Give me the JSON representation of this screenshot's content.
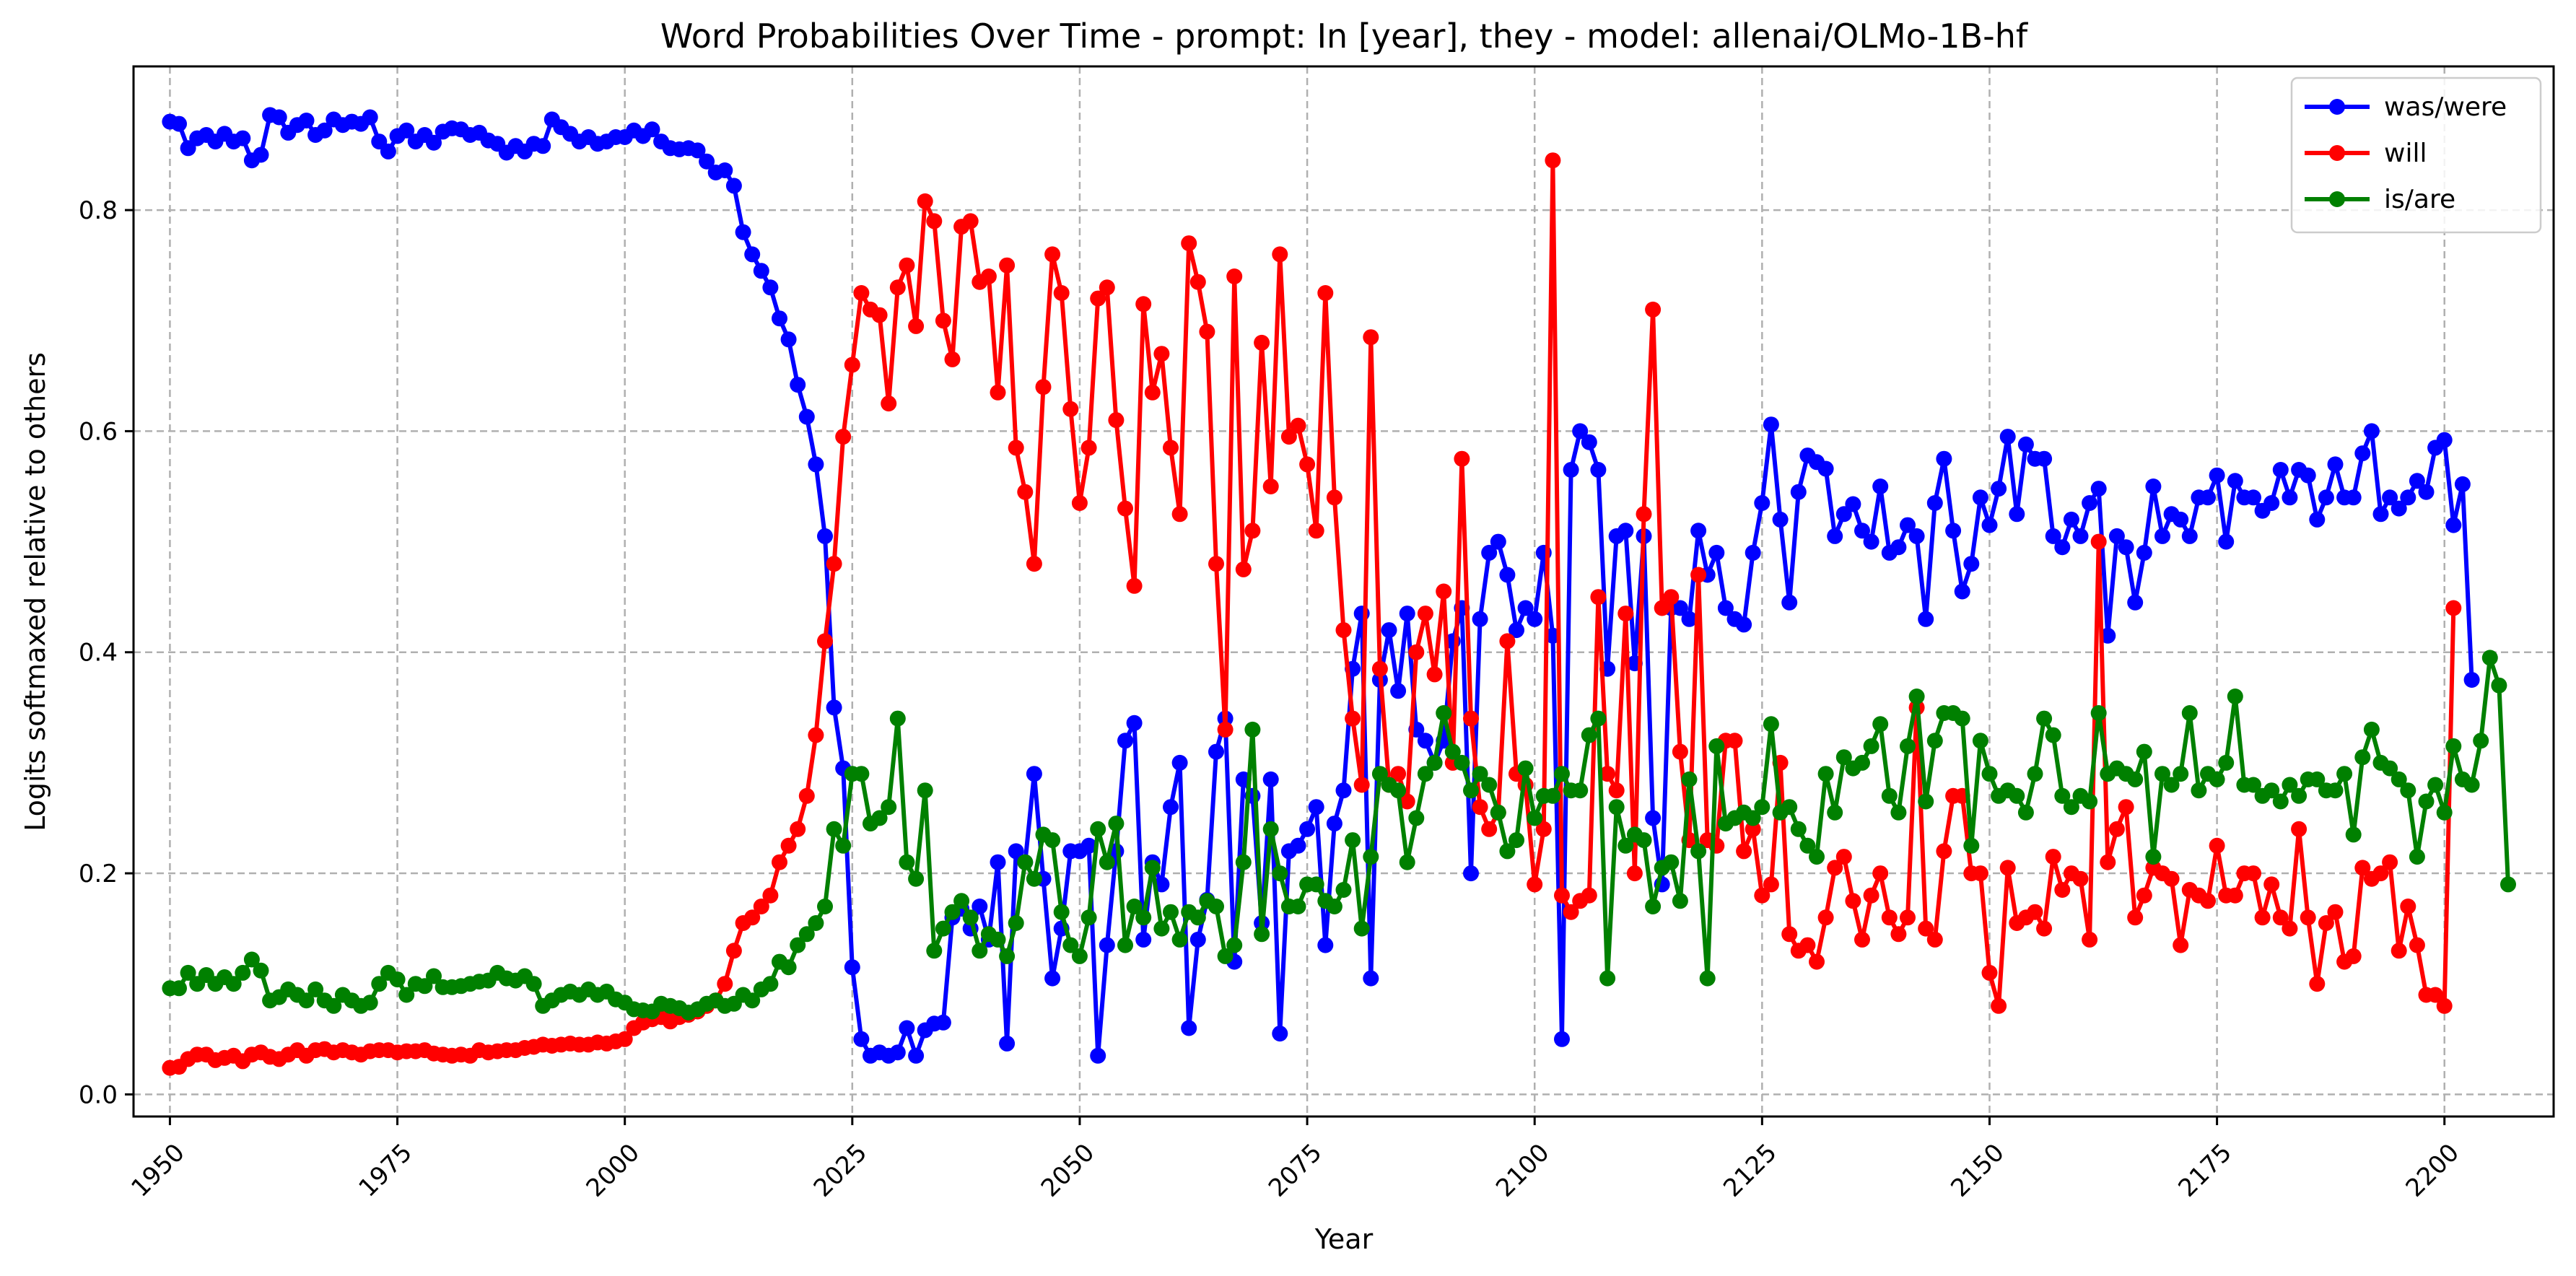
{
  "chart_data": {
    "type": "line",
    "title": "Word Probabilities Over Time - prompt: In [year], they - model: allenai/OLMo-1B-hf",
    "xlabel": "Year",
    "ylabel": "Logits softmaxed relative to others",
    "xlim": [
      1946,
      2212
    ],
    "ylim": [
      -0.02,
      0.93
    ],
    "xticks": [
      "1950",
      "1975",
      "2000",
      "2025",
      "2050",
      "2075",
      "2100",
      "2125",
      "2150",
      "2175",
      "2200"
    ],
    "yticks": [
      "0.0",
      "0.2",
      "0.4",
      "0.6",
      "0.8"
    ],
    "grid": true,
    "legend_position": "top-right",
    "x_start": 1950,
    "series": [
      {
        "name": "was/were",
        "color": "#0000ff",
        "values": [
          0.88,
          0.878,
          0.856,
          0.865,
          0.868,
          0.862,
          0.869,
          0.862,
          0.865,
          0.845,
          0.85,
          0.886,
          0.884,
          0.87,
          0.877,
          0.881,
          0.868,
          0.872,
          0.882,
          0.877,
          0.88,
          0.878,
          0.884,
          0.862,
          0.853,
          0.867,
          0.872,
          0.862,
          0.868,
          0.861,
          0.871,
          0.874,
          0.873,
          0.868,
          0.87,
          0.863,
          0.86,
          0.852,
          0.858,
          0.853,
          0.86,
          0.858,
          0.882,
          0.875,
          0.869,
          0.862,
          0.866,
          0.86,
          0.862,
          0.866,
          0.866,
          0.872,
          0.867,
          0.873,
          0.862,
          0.856,
          0.855,
          0.856,
          0.854,
          0.844,
          0.834,
          0.836,
          0.822,
          0.78,
          0.76,
          0.745,
          0.73,
          0.702,
          0.683,
          0.642,
          0.613,
          0.57,
          0.505,
          0.35,
          0.295,
          0.115,
          0.05,
          0.035,
          0.038,
          0.035,
          0.038,
          0.06,
          0.035,
          0.058,
          0.064,
          0.065,
          0.16,
          0.168,
          0.15,
          0.17,
          0.14,
          0.21,
          0.046,
          0.22,
          0.21,
          0.29,
          0.195,
          0.105,
          0.15,
          0.22,
          0.22,
          0.225,
          0.035,
          0.135,
          0.22,
          0.32,
          0.336,
          0.14,
          0.21,
          0.19,
          0.26,
          0.3,
          0.06,
          0.14,
          0.176,
          0.31,
          0.34,
          0.12,
          0.285,
          0.27,
          0.155,
          0.285,
          0.055,
          0.22,
          0.225,
          0.24,
          0.26,
          0.135,
          0.245,
          0.275,
          0.385,
          0.435,
          0.105,
          0.375,
          0.42,
          0.365,
          0.435,
          0.33,
          0.32,
          0.3,
          0.32,
          0.41,
          0.44,
          0.2,
          0.43,
          0.49,
          0.5,
          0.47,
          0.42,
          0.44,
          0.43,
          0.49,
          0.415,
          0.05,
          0.565,
          0.6,
          0.59,
          0.565,
          0.385,
          0.505,
          0.51,
          0.39,
          0.505,
          0.25,
          0.19,
          0.44,
          0.44,
          0.43,
          0.51,
          0.47,
          0.49,
          0.44,
          0.43,
          0.425,
          0.49,
          0.535,
          0.606,
          0.52,
          0.445,
          0.545,
          0.578,
          0.572,
          0.566,
          0.505,
          0.525,
          0.534,
          0.51,
          0.5,
          0.55,
          0.49,
          0.495,
          0.515,
          0.505,
          0.43,
          0.535,
          0.575,
          0.51,
          0.455,
          0.48,
          0.54,
          0.515,
          0.548,
          0.595,
          0.525,
          0.588,
          0.575,
          0.575,
          0.505,
          0.495,
          0.52,
          0.505,
          0.535,
          0.548,
          0.415,
          0.505,
          0.495,
          0.445,
          0.49,
          0.55,
          0.505,
          0.525,
          0.52,
          0.505,
          0.54,
          0.54,
          0.56,
          0.5,
          0.555,
          0.54,
          0.54,
          0.528,
          0.535,
          0.565,
          0.54,
          0.565,
          0.56,
          0.52,
          0.54,
          0.57,
          0.54,
          0.54,
          0.58,
          0.6,
          0.525,
          0.54,
          0.53,
          0.54,
          0.555,
          0.545,
          0.585,
          0.592,
          0.515,
          0.552,
          0.375
        ]
      },
      {
        "name": "will",
        "color": "#ff0000",
        "values": [
          0.024,
          0.025,
          0.032,
          0.036,
          0.036,
          0.031,
          0.033,
          0.035,
          0.03,
          0.036,
          0.038,
          0.034,
          0.032,
          0.036,
          0.04,
          0.035,
          0.04,
          0.041,
          0.038,
          0.04,
          0.038,
          0.036,
          0.039,
          0.04,
          0.04,
          0.038,
          0.039,
          0.039,
          0.04,
          0.037,
          0.036,
          0.035,
          0.036,
          0.035,
          0.04,
          0.038,
          0.039,
          0.04,
          0.04,
          0.042,
          0.043,
          0.045,
          0.044,
          0.045,
          0.046,
          0.045,
          0.045,
          0.047,
          0.046,
          0.048,
          0.05,
          0.06,
          0.065,
          0.068,
          0.07,
          0.066,
          0.07,
          0.072,
          0.075,
          0.08,
          0.085,
          0.1,
          0.13,
          0.155,
          0.16,
          0.17,
          0.18,
          0.21,
          0.225,
          0.24,
          0.27,
          0.325,
          0.41,
          0.48,
          0.595,
          0.66,
          0.725,
          0.71,
          0.705,
          0.625,
          0.73,
          0.75,
          0.695,
          0.808,
          0.79,
          0.7,
          0.665,
          0.785,
          0.79,
          0.735,
          0.74,
          0.635,
          0.75,
          0.585,
          0.545,
          0.48,
          0.64,
          0.76,
          0.725,
          0.62,
          0.535,
          0.585,
          0.72,
          0.73,
          0.61,
          0.53,
          0.46,
          0.715,
          0.635,
          0.67,
          0.585,
          0.525,
          0.77,
          0.735,
          0.69,
          0.48,
          0.33,
          0.74,
          0.475,
          0.51,
          0.68,
          0.55,
          0.76,
          0.595,
          0.605,
          0.57,
          0.51,
          0.725,
          0.54,
          0.42,
          0.34,
          0.28,
          0.685,
          0.385,
          0.28,
          0.29,
          0.265,
          0.4,
          0.435,
          0.38,
          0.455,
          0.3,
          0.575,
          0.34,
          0.26,
          0.24,
          0.255,
          0.41,
          0.29,
          0.28,
          0.19,
          0.24,
          0.845,
          0.18,
          0.165,
          0.175,
          0.18,
          0.45,
          0.29,
          0.275,
          0.435,
          0.2,
          0.525,
          0.71,
          0.44,
          0.45,
          0.31,
          0.23,
          0.47,
          0.23,
          0.225,
          0.32,
          0.32,
          0.22,
          0.24,
          0.18,
          0.19,
          0.3,
          0.145,
          0.13,
          0.135,
          0.12,
          0.16,
          0.205,
          0.215,
          0.175,
          0.14,
          0.18,
          0.2,
          0.16,
          0.145,
          0.16,
          0.35,
          0.15,
          0.14,
          0.22,
          0.27,
          0.27,
          0.2,
          0.2,
          0.11,
          0.08,
          0.205,
          0.155,
          0.16,
          0.165,
          0.15,
          0.215,
          0.185,
          0.2,
          0.195,
          0.14,
          0.5,
          0.21,
          0.24,
          0.26,
          0.16,
          0.18,
          0.205,
          0.2,
          0.195,
          0.135,
          0.185,
          0.18,
          0.175,
          0.225,
          0.18,
          0.18,
          0.2,
          0.2,
          0.16,
          0.19,
          0.16,
          0.15,
          0.24,
          0.16,
          0.1,
          0.155,
          0.165,
          0.12,
          0.125,
          0.205,
          0.195,
          0.2,
          0.21,
          0.13,
          0.17,
          0.135,
          0.09,
          0.09,
          0.08,
          0.44
        ]
      },
      {
        "name": "is/are",
        "color": "#008000",
        "values": [
          0.096,
          0.096,
          0.11,
          0.1,
          0.108,
          0.1,
          0.106,
          0.1,
          0.11,
          0.122,
          0.112,
          0.085,
          0.088,
          0.095,
          0.09,
          0.085,
          0.095,
          0.085,
          0.08,
          0.09,
          0.085,
          0.08,
          0.083,
          0.1,
          0.11,
          0.104,
          0.09,
          0.1,
          0.098,
          0.107,
          0.097,
          0.097,
          0.098,
          0.1,
          0.102,
          0.103,
          0.11,
          0.105,
          0.103,
          0.107,
          0.1,
          0.08,
          0.085,
          0.09,
          0.093,
          0.09,
          0.095,
          0.09,
          0.093,
          0.086,
          0.083,
          0.077,
          0.076,
          0.075,
          0.082,
          0.08,
          0.078,
          0.074,
          0.077,
          0.082,
          0.085,
          0.08,
          0.082,
          0.09,
          0.085,
          0.095,
          0.1,
          0.12,
          0.115,
          0.135,
          0.145,
          0.155,
          0.17,
          0.24,
          0.225,
          0.29,
          0.29,
          0.245,
          0.25,
          0.26,
          0.34,
          0.21,
          0.195,
          0.275,
          0.13,
          0.15,
          0.165,
          0.175,
          0.16,
          0.13,
          0.145,
          0.14,
          0.125,
          0.155,
          0.21,
          0.195,
          0.235,
          0.23,
          0.165,
          0.135,
          0.125,
          0.16,
          0.24,
          0.21,
          0.245,
          0.135,
          0.17,
          0.16,
          0.205,
          0.15,
          0.165,
          0.14,
          0.165,
          0.16,
          0.175,
          0.17,
          0.125,
          0.135,
          0.21,
          0.33,
          0.145,
          0.24,
          0.2,
          0.17,
          0.17,
          0.19,
          0.19,
          0.175,
          0.17,
          0.185,
          0.23,
          0.15,
          0.215,
          0.29,
          0.28,
          0.275,
          0.21,
          0.25,
          0.29,
          0.3,
          0.345,
          0.31,
          0.3,
          0.275,
          0.29,
          0.28,
          0.255,
          0.22,
          0.23,
          0.295,
          0.25,
          0.27,
          0.27,
          0.29,
          0.275,
          0.275,
          0.325,
          0.34,
          0.105,
          0.26,
          0.225,
          0.235,
          0.23,
          0.17,
          0.205,
          0.21,
          0.175,
          0.285,
          0.22,
          0.105,
          0.315,
          0.245,
          0.25,
          0.255,
          0.25,
          0.26,
          0.335,
          0.255,
          0.26,
          0.24,
          0.225,
          0.215,
          0.29,
          0.255,
          0.305,
          0.295,
          0.3,
          0.315,
          0.335,
          0.27,
          0.255,
          0.315,
          0.36,
          0.265,
          0.32,
          0.345,
          0.345,
          0.34,
          0.225,
          0.32,
          0.29,
          0.27,
          0.275,
          0.27,
          0.255,
          0.29,
          0.34,
          0.325,
          0.27,
          0.26,
          0.27,
          0.265,
          0.345,
          0.29,
          0.295,
          0.29,
          0.285,
          0.31,
          0.215,
          0.29,
          0.28,
          0.29,
          0.345,
          0.275,
          0.29,
          0.285,
          0.3,
          0.36,
          0.28,
          0.28,
          0.27,
          0.275,
          0.265,
          0.28,
          0.27,
          0.285,
          0.285,
          0.275,
          0.275,
          0.29,
          0.235,
          0.305,
          0.33,
          0.3,
          0.295,
          0.285,
          0.275,
          0.215,
          0.265,
          0.28,
          0.255,
          0.315,
          0.285,
          0.28,
          0.32,
          0.395,
          0.37,
          0.19
        ]
      }
    ]
  }
}
